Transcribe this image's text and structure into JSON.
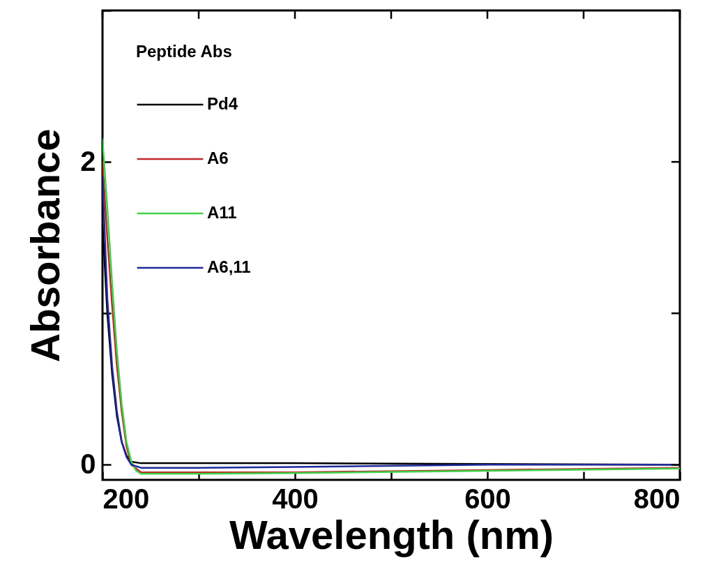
{
  "chart_data": {
    "type": "line",
    "xlabel": "Wavelength (nm)",
    "ylabel": "Absorbance",
    "legend_title": "Peptide Abs",
    "legend": "top left",
    "grid": false,
    "line_style": "solid",
    "marker": "none",
    "xlim": [
      200,
      800
    ],
    "xticks": [
      200,
      {
        "value": 300,
        "label": null
      },
      400,
      {
        "value": 500,
        "label": null
      },
      600,
      {
        "value": 700,
        "label": null
      },
      800
    ],
    "ylim": [
      -0.1,
      3.0
    ],
    "yticks": [
      0,
      {
        "value": 1,
        "label": null
      },
      2,
      {
        "value": 3,
        "label": null
      }
    ],
    "series": [
      {
        "name": "Pd4",
        "color": "#000000",
        "x": [
          200,
          205,
          210,
          215,
          220,
          225,
          230,
          240,
          300,
          400,
          600,
          800
        ],
        "values": [
          1.6,
          1.0,
          0.6,
          0.32,
          0.15,
          0.06,
          0.02,
          0.01,
          0.01,
          0.01,
          0.005,
          0.0
        ]
      },
      {
        "name": "A6",
        "color": "#c0282a",
        "x": [
          200,
          205,
          210,
          215,
          220,
          225,
          230,
          240,
          300,
          400,
          600,
          800
        ],
        "values": [
          2.0,
          1.5,
          1.05,
          0.65,
          0.35,
          0.12,
          0.0,
          -0.05,
          -0.05,
          -0.05,
          -0.035,
          -0.02
        ]
      },
      {
        "name": "A11",
        "color": "#3fd34a",
        "x": [
          200,
          205,
          210,
          215,
          220,
          225,
          230,
          235,
          240,
          300,
          400,
          600,
          800
        ],
        "values": [
          2.15,
          1.7,
          1.2,
          0.75,
          0.4,
          0.15,
          0.02,
          -0.04,
          -0.06,
          -0.06,
          -0.055,
          -0.04,
          -0.025
        ]
      },
      {
        "name": "A6,11",
        "color": "#1f2a9a",
        "x": [
          200,
          205,
          210,
          215,
          220,
          225,
          230,
          240,
          300,
          400,
          600,
          800
        ],
        "values": [
          1.9,
          1.1,
          0.65,
          0.35,
          0.15,
          0.05,
          0.0,
          -0.02,
          -0.02,
          -0.015,
          0.0,
          0.0
        ]
      }
    ]
  }
}
